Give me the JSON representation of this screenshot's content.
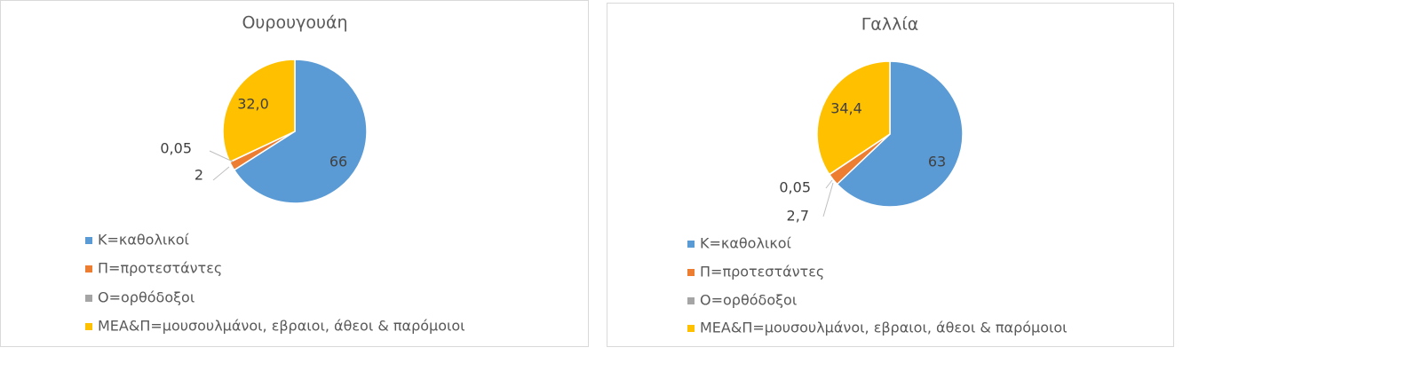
{
  "chart_data": [
    {
      "type": "pie",
      "title": "Ουρουγουάη",
      "categories": [
        "Κ=καθολικοί",
        "Π=προτεστάντες",
        "Ο=ορθόδοξοι",
        "ΜΕΑ&Π=μουσουλμάνοι, εβραιοι, άθεοι  & παρόμοιοι"
      ],
      "values": [
        66,
        2,
        0.05,
        32.0
      ],
      "value_labels": [
        "66",
        "2",
        "0,05",
        "32,0"
      ],
      "colors": [
        "#5b9bd5",
        "#ed7d31",
        "#a5a5a5",
        "#ffc000"
      ]
    },
    {
      "type": "pie",
      "title": "Γαλλία",
      "categories": [
        "Κ=καθολικοί",
        "Π=προτεστάντες",
        "Ο=ορθόδοξοι",
        "ΜΕΑ&Π=μουσουλμάνοι, εβραιοι, άθεοι  & παρόμοιοι"
      ],
      "values": [
        63,
        2.7,
        0.05,
        34.4
      ],
      "value_labels": [
        "63",
        "2,7",
        "0,05",
        "34,4"
      ],
      "colors": [
        "#5b9bd5",
        "#ed7d31",
        "#a5a5a5",
        "#ffc000"
      ]
    }
  ]
}
